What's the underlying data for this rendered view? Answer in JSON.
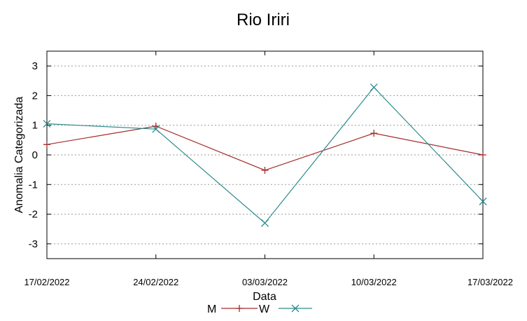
{
  "chart_data": {
    "type": "line",
    "title": "Rio Iriri",
    "xlabel": "Data",
    "ylabel": "Anomalia Categorizada",
    "x": [
      "17/02/2022",
      "24/02/2022",
      "03/03/2022",
      "10/03/2022",
      "17/03/2022"
    ],
    "ylim": [
      -3.5,
      3.5
    ],
    "yticks": [
      3,
      2,
      1,
      0,
      -1,
      -2,
      -3
    ],
    "grid": "horizontal-dashed",
    "legend_position": "bottom-center",
    "series": [
      {
        "name": "M",
        "color": "#a52a2a",
        "marker": "plus",
        "values": [
          0.35,
          0.97,
          -0.52,
          0.73,
          0.0
        ]
      },
      {
        "name": "W",
        "color": "#2e8b8b",
        "marker": "x",
        "values": [
          1.05,
          0.87,
          -2.3,
          2.28,
          -1.57
        ]
      }
    ]
  }
}
